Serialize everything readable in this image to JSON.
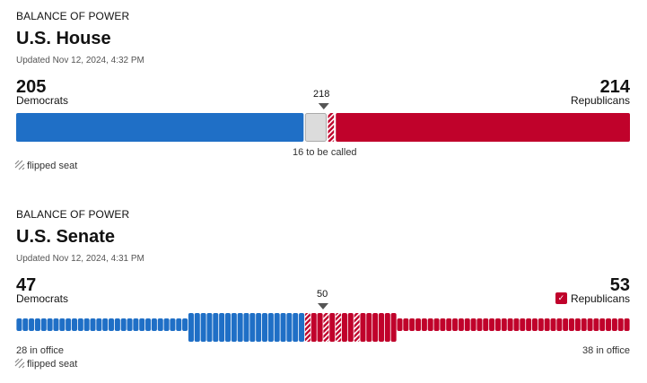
{
  "house": {
    "kicker": "BALANCE OF POWER",
    "title": "U.S. House",
    "updated": "Updated Nov 12, 2024, 4:32 PM",
    "dem_count": "205",
    "dem_label": "Democrats",
    "rep_count": "214",
    "rep_label": "Republicans",
    "majority_label": "218",
    "to_be_called": "16 to be called",
    "flipped_label": "flipped seat"
  },
  "senate": {
    "kicker": "BALANCE OF POWER",
    "title": "U.S. Senate",
    "updated": "Updated Nov 12, 2024, 4:31 PM",
    "dem_count": "47",
    "dem_label": "Democrats",
    "rep_count": "53",
    "rep_label": "Republicans",
    "rep_control_mark": "✓",
    "majority_label": "50",
    "dem_in_office": "28 in office",
    "rep_in_office": "38 in office",
    "flipped_label": "flipped seat"
  },
  "colors": {
    "dem": "#1f6fc6",
    "rep": "#c0022b",
    "uncalled": "#dcdcdc",
    "marker": "#555555"
  },
  "chart_data": [
    {
      "type": "bar",
      "title": "U.S. House",
      "total_seats": 435,
      "majority": 218,
      "series": [
        {
          "name": "Democrats",
          "values": [
            205
          ],
          "flipped": 0
        },
        {
          "name": "Republicans",
          "values": [
            214
          ],
          "flipped": 3
        },
        {
          "name": "Uncalled",
          "values": [
            16
          ]
        }
      ]
    },
    {
      "type": "bar",
      "title": "U.S. Senate",
      "total_seats": 100,
      "majority": 50,
      "series": [
        {
          "name": "Democrats",
          "values": [
            47
          ],
          "in_office": 28,
          "flipped": 0
        },
        {
          "name": "Republicans",
          "values": [
            53
          ],
          "in_office": 38,
          "flipped": 4,
          "controls": true
        }
      ]
    }
  ]
}
